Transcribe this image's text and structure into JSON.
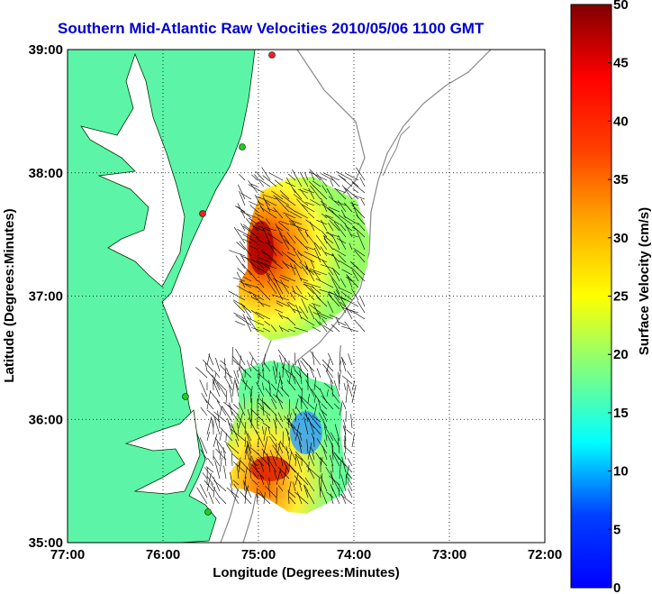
{
  "title": "Southern Mid-Atlantic Raw Velocities 2010/05/06 1100 GMT",
  "map": {
    "xlabel": "Longitude (Degrees:Minutes)",
    "ylabel": "Latitude (Degrees:Minutes)",
    "x_ticks": [
      "77:00",
      "76:00",
      "75:00",
      "74:00",
      "73:00",
      "72:00"
    ],
    "y_ticks": [
      "39:00",
      "38:00",
      "37:00",
      "36:00",
      "35:00"
    ],
    "lon_range": [
      -77,
      -72
    ],
    "lat_range": [
      35,
      39
    ],
    "grid": true,
    "land_color": "#5cf5a8",
    "station_colors": {
      "active": "#22cc22",
      "inactive": "#ee2222"
    }
  },
  "colorbar": {
    "label": "Surface Velocity (cm/s)",
    "ticks": [
      "0",
      "5",
      "10",
      "15",
      "20",
      "25",
      "30",
      "35",
      "40",
      "45",
      "50"
    ],
    "range": [
      0,
      50
    ],
    "colormap": "jet"
  }
}
